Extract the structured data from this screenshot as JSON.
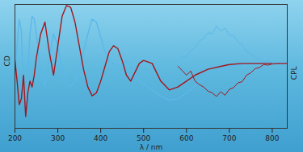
{
  "chart_data": {
    "type": "line",
    "x_label": "λ / nm",
    "y_label": "CD",
    "y2_label": "CPL",
    "xlim": [
      200,
      835
    ],
    "xticks": [
      200,
      300,
      400,
      500,
      600,
      700,
      800
    ],
    "ylim": [
      -1.1,
      1
    ],
    "yticks": [],
    "y2lim": [
      -1.1,
      1
    ],
    "y2ticks": [],
    "tick_labels": "x",
    "series": [
      {
        "color": "#5bb8e8",
        "axis": "y",
        "x": [
          200,
          205,
          210,
          215,
          220,
          225,
          230,
          235,
          240,
          245,
          250,
          260,
          270,
          280,
          290,
          300,
          310,
          320,
          330,
          340,
          350,
          360,
          370,
          380,
          390,
          400,
          410,
          420,
          430,
          440,
          450,
          460,
          470,
          480,
          490,
          500,
          520,
          540,
          560,
          580,
          600,
          620,
          650,
          680,
          700,
          730,
          760,
          800,
          835
        ],
        "values": [
          -0.1,
          0.3,
          0.75,
          0.55,
          -0.4,
          -0.75,
          -0.2,
          0.5,
          0.8,
          0.75,
          0.5,
          -0.2,
          -0.4,
          0.1,
          0.5,
          0.3,
          -0.1,
          -0.35,
          -0.4,
          -0.3,
          -0.1,
          0.2,
          0.5,
          0.75,
          0.7,
          0.45,
          0.2,
          0.05,
          0,
          -0.05,
          -0.05,
          0.05,
          -0.05,
          -0.2,
          -0.3,
          -0.35,
          -0.45,
          -0.55,
          -0.62,
          -0.6,
          -0.5,
          -0.38,
          -0.22,
          -0.1,
          -0.05,
          -0.02,
          0,
          0,
          0
        ]
      },
      {
        "color": "#a3161c",
        "axis": "y",
        "x": [
          200,
          205,
          210,
          215,
          220,
          225,
          230,
          235,
          240,
          245,
          250,
          260,
          270,
          280,
          290,
          300,
          310,
          320,
          330,
          340,
          350,
          360,
          370,
          380,
          390,
          400,
          410,
          420,
          430,
          440,
          450,
          460,
          470,
          480,
          490,
          500,
          520,
          540,
          560,
          580,
          600,
          620,
          650,
          680,
          700,
          730,
          760,
          800,
          835
        ],
        "values": [
          0.05,
          -0.3,
          -0.7,
          -0.6,
          -0.2,
          -0.9,
          -0.5,
          -0.3,
          -0.4,
          -0.2,
          0.1,
          0.5,
          0.7,
          0.2,
          -0.2,
          0.3,
          0.8,
          0.98,
          0.95,
          0.7,
          0.3,
          -0.1,
          -0.4,
          -0.55,
          -0.5,
          -0.3,
          -0.05,
          0.2,
          0.3,
          0.25,
          0.05,
          -0.2,
          -0.3,
          -0.15,
          0,
          0.05,
          0,
          -0.3,
          -0.45,
          -0.4,
          -0.3,
          -0.2,
          -0.1,
          -0.05,
          -0.02,
          0,
          0,
          0,
          0
        ]
      },
      {
        "color": "#5bb8e8",
        "axis": "y2",
        "x": [
          580,
          590,
          600,
          610,
          620,
          630,
          640,
          650,
          660,
          670,
          680,
          690,
          700,
          710,
          720,
          730,
          740,
          750,
          760,
          770,
          780,
          790,
          800,
          810,
          820
        ],
        "values": [
          0.05,
          0.12,
          0.1,
          0.22,
          0.26,
          0.38,
          0.42,
          0.52,
          0.5,
          0.63,
          0.55,
          0.6,
          0.48,
          0.47,
          0.36,
          0.31,
          0.2,
          0.17,
          0.09,
          0.08,
          0.02,
          0.04,
          0.01,
          0,
          0
        ]
      },
      {
        "color": "#a3161c",
        "axis": "y2",
        "x": [
          580,
          590,
          600,
          610,
          620,
          630,
          640,
          650,
          660,
          670,
          680,
          690,
          700,
          710,
          720,
          730,
          740,
          750,
          760,
          770,
          780,
          790,
          800,
          810,
          820
        ],
        "values": [
          -0.05,
          -0.12,
          -0.2,
          -0.13,
          -0.3,
          -0.36,
          -0.4,
          -0.47,
          -0.5,
          -0.56,
          -0.48,
          -0.54,
          -0.44,
          -0.41,
          -0.33,
          -0.31,
          -0.2,
          -0.16,
          -0.09,
          -0.07,
          -0.02,
          -0.03,
          -0.01,
          0,
          0
        ]
      }
    ]
  }
}
